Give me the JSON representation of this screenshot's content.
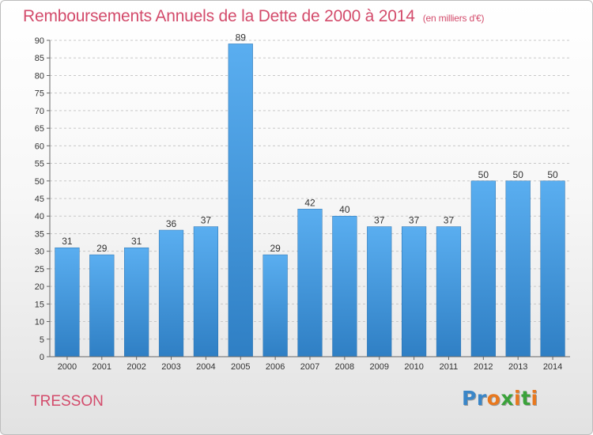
{
  "header": {
    "title": "Remboursements Annuels de la Dette de 2000 à 2014",
    "unit_note": "(en milliers d'€)"
  },
  "footer": {
    "commune": "TRESSON",
    "brand_letters": [
      {
        "ch": "P",
        "color": "#3a86c8"
      },
      {
        "ch": "r",
        "color": "#3a86c8"
      },
      {
        "ch": "o",
        "color": "#e8781e"
      },
      {
        "ch": "x",
        "color": "#3aa23a"
      },
      {
        "ch": "i",
        "color": "#e8781e"
      },
      {
        "ch": "t",
        "color": "#3aa23a"
      },
      {
        "ch": "i",
        "color": "#e8781e"
      }
    ]
  },
  "chart_data": {
    "type": "bar",
    "title": "Remboursements Annuels de la Dette de 2000 à 2014",
    "subtitle": "(en milliers d'€)",
    "xlabel": "",
    "ylabel": "",
    "categories": [
      "2000",
      "2001",
      "2002",
      "2003",
      "2004",
      "2005",
      "2006",
      "2007",
      "2008",
      "2009",
      "2010",
      "2011",
      "2012",
      "2013",
      "2014"
    ],
    "values": [
      31,
      29,
      31,
      36,
      37,
      89,
      29,
      42,
      40,
      37,
      37,
      37,
      50,
      50,
      50
    ],
    "ylim": [
      0,
      90
    ],
    "yticks": [
      0,
      5,
      10,
      15,
      20,
      25,
      30,
      35,
      40,
      45,
      50,
      55,
      60,
      65,
      70,
      75,
      80,
      85,
      90
    ],
    "grid": true,
    "bar_color": "#4a9ee0",
    "title_color": "#d34b6b"
  }
}
